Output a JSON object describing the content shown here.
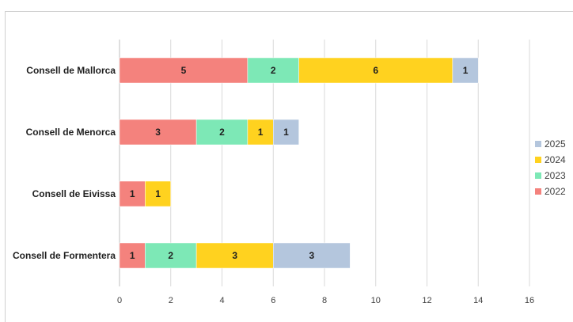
{
  "chart_data": {
    "type": "bar",
    "orientation": "horizontal",
    "stacked": true,
    "categories": [
      "Consell de Mallorca",
      "Consell de Menorca",
      "Consell de Eivissa",
      "Consell de Formentera"
    ],
    "series": [
      {
        "name": "2022",
        "color": "#f4827d",
        "values": [
          5,
          3,
          1,
          1
        ]
      },
      {
        "name": "2023",
        "color": "#7de8b6",
        "values": [
          2,
          2,
          0,
          2
        ]
      },
      {
        "name": "2024",
        "color": "#ffd21f",
        "values": [
          6,
          1,
          1,
          3
        ]
      },
      {
        "name": "2025",
        "color": "#b4c6dd",
        "values": [
          1,
          1,
          0,
          3
        ]
      }
    ],
    "xlim": [
      0,
      16
    ],
    "xticks": [
      "0",
      "2",
      "4",
      "6",
      "8",
      "10",
      "12",
      "14",
      "16"
    ],
    "grid": "vertical",
    "legend": {
      "position": "right",
      "order": [
        "2025",
        "2024",
        "2023",
        "2022"
      ]
    },
    "title": "",
    "xlabel": "",
    "ylabel": ""
  }
}
